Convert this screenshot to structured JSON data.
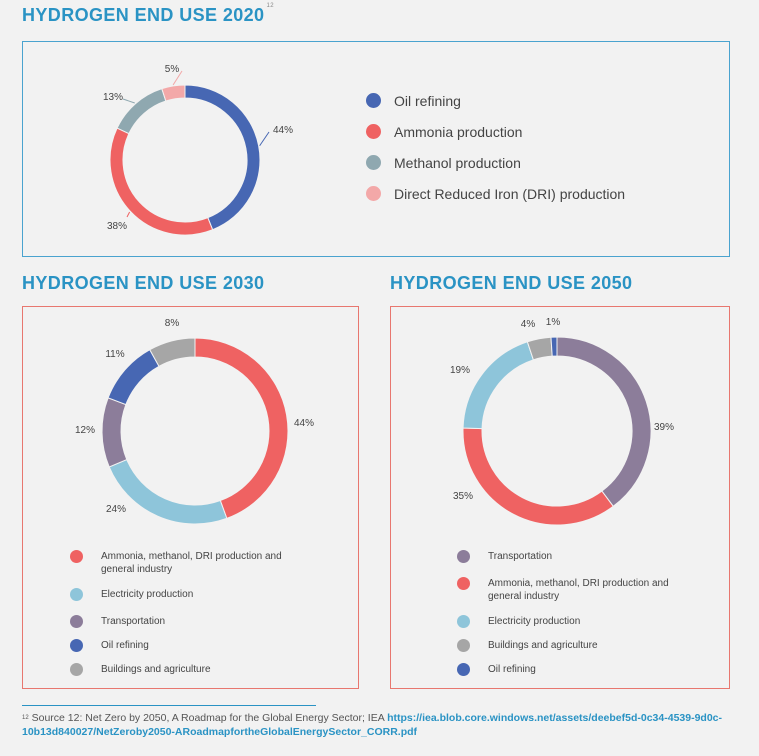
{
  "section_2020": {
    "title": "HYDROGEN END USE 2020",
    "footnote_ref": "12"
  },
  "section_2030": {
    "title": "HYDROGEN END USE 2030"
  },
  "section_2050": {
    "title": "HYDROGEN END USE 2050"
  },
  "chart_data": [
    {
      "type": "pie",
      "title": "HYDROGEN END USE 2020",
      "style": "donut",
      "legend_position": "right",
      "categories": [
        "Oil refining",
        "Ammonia production",
        "Methanol production",
        "Direct Reduced Iron (DRI) production"
      ],
      "values": [
        44,
        38,
        13,
        5
      ],
      "labels": [
        "44%",
        "38%",
        "13%",
        "5%"
      ],
      "colors": [
        "#4767b3",
        "#ef6262",
        "#8fa8b0",
        "#f3a8a8"
      ]
    },
    {
      "type": "pie",
      "title": "HYDROGEN END USE 2030",
      "style": "donut",
      "legend_position": "bottom",
      "categories": [
        "Ammonia, methanol, DRI production and general industry",
        "Electricity production",
        "Transportation",
        "Oil refining",
        "Buildings and agriculture"
      ],
      "values": [
        44,
        24,
        12,
        11,
        8
      ],
      "labels": [
        "44%",
        "24%",
        "12%",
        "11%",
        "8%"
      ],
      "colors": [
        "#ef6262",
        "#8ec5da",
        "#8c7d9a",
        "#4767b3",
        "#a6a6a6"
      ]
    },
    {
      "type": "pie",
      "title": "HYDROGEN END USE 2050",
      "style": "donut",
      "legend_position": "bottom",
      "categories": [
        "Transportation",
        "Ammonia, methanol, DRI production and general industry",
        "Electricity production",
        "Buildings and agriculture",
        "Oil refining"
      ],
      "values": [
        39,
        35,
        19,
        4,
        1
      ],
      "labels": [
        "39%",
        "35%",
        "19%",
        "4%",
        "1%"
      ],
      "colors": [
        "#8c7d9a",
        "#ef6262",
        "#8ec5da",
        "#a6a6a6",
        "#4767b3"
      ]
    }
  ],
  "legend_2020": [
    {
      "label": "Oil refining",
      "color": "#4767b3"
    },
    {
      "label": "Ammonia production",
      "color": "#ef6262"
    },
    {
      "label": "Methanol production",
      "color": "#8fa8b0"
    },
    {
      "label": "Direct Reduced Iron (DRI) production",
      "color": "#f3a8a8"
    }
  ],
  "legend_2030": [
    {
      "label": "Ammonia, methanol, DRI production and general industry",
      "color": "#ef6262"
    },
    {
      "label": "Electricity production",
      "color": "#8ec5da"
    },
    {
      "label": "Transportation",
      "color": "#8c7d9a"
    },
    {
      "label": "Oil refining",
      "color": "#4767b3"
    },
    {
      "label": "Buildings and agriculture",
      "color": "#a6a6a6"
    }
  ],
  "legend_2050": [
    {
      "label": "Transportation",
      "color": "#8c7d9a"
    },
    {
      "label": "Ammonia, methanol, DRI production and general industry",
      "color": "#ef6262"
    },
    {
      "label": "Electricity production",
      "color": "#8ec5da"
    },
    {
      "label": "Buildings and agriculture",
      "color": "#a6a6a6"
    },
    {
      "label": "Oil refining",
      "color": "#4767b3"
    }
  ],
  "footnote": {
    "number": "12",
    "text": "Source 12: Net Zero by 2050, A Roadmap for the Global Energy Sector; IEA",
    "link": "https://iea.blob.core.windows.net/assets/deebef5d-0c34-4539-9d0c-10b13d840027/NetZeroby2050-ARoadmapfortheGlobalEnergySector_CORR.pdf"
  }
}
